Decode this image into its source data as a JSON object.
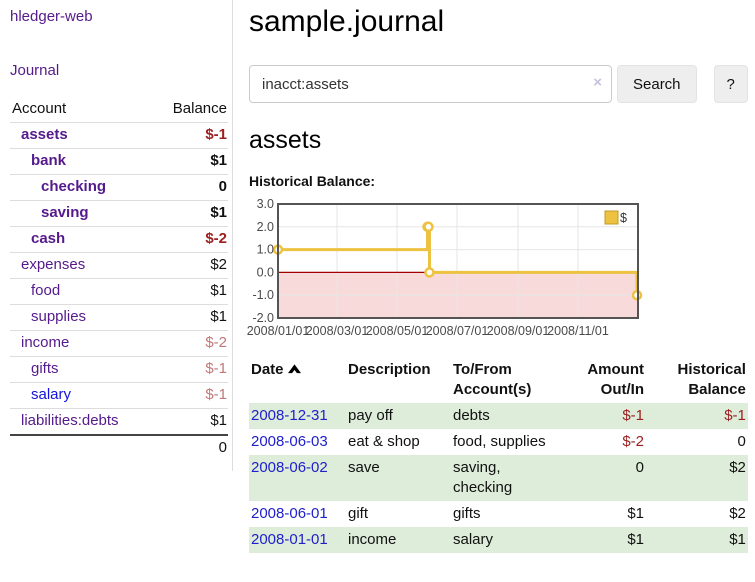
{
  "app": {
    "title": "hledger-web"
  },
  "sidebar": {
    "journal_label": "Journal",
    "accounts_table": {
      "headers": [
        "Account",
        "Balance"
      ],
      "rows": [
        {
          "name": "assets",
          "indent": 0,
          "bold": true,
          "balance": "$-1",
          "neg": "strong"
        },
        {
          "name": "bank",
          "indent": 1,
          "bold": true,
          "balance": "$1",
          "neg": null
        },
        {
          "name": "checking",
          "indent": 2,
          "bold": true,
          "balance": "0",
          "neg": null
        },
        {
          "name": "saving",
          "indent": 2,
          "bold": true,
          "balance": "$1",
          "neg": null
        },
        {
          "name": "cash",
          "indent": 1,
          "bold": true,
          "balance": "$-2",
          "neg": "strong"
        },
        {
          "name": "expenses",
          "indent": 0,
          "bold": false,
          "balance": "$2",
          "neg": null
        },
        {
          "name": "food",
          "indent": 1,
          "bold": false,
          "balance": "$1",
          "neg": null
        },
        {
          "name": "supplies",
          "indent": 1,
          "bold": false,
          "balance": "$1",
          "neg": null
        },
        {
          "name": "income",
          "indent": 0,
          "bold": false,
          "balance": "$-2",
          "neg": "muted"
        },
        {
          "name": "gifts",
          "indent": 1,
          "bold": false,
          "balance": "$-1",
          "neg": "muted"
        },
        {
          "name": "salary",
          "indent": 1,
          "bold": false,
          "balance": "$-1",
          "neg": "muted",
          "unvisited": true
        },
        {
          "name": "liabilities:debts",
          "indent": 0,
          "bold": false,
          "balance": "$1",
          "neg": null
        }
      ],
      "total": "0"
    }
  },
  "header": {
    "title": "sample.journal"
  },
  "search": {
    "value": "inacct:assets",
    "clear_label": "×",
    "button": "Search",
    "help": "?"
  },
  "account_page": {
    "heading": "assets",
    "chart_label": "Historical Balance:"
  },
  "chart_data": {
    "type": "line",
    "title": "Historical Balance",
    "style": "steps",
    "series": [
      {
        "name": "$",
        "color": "#edc240",
        "points": [
          [
            "2008-01-01",
            1
          ],
          [
            "2008-06-01",
            2
          ],
          [
            "2008-06-02",
            2
          ],
          [
            "2008-06-03",
            0
          ],
          [
            "2008-12-31",
            -1
          ]
        ]
      }
    ],
    "x_range": [
      "2008-01-01",
      "2009-01-01"
    ],
    "x_ticks": [
      {
        "date": "2008-01-01",
        "label": "2008/01/01"
      },
      {
        "date": "2008-03-01",
        "label": "2008/03/01"
      },
      {
        "date": "2008-05-01",
        "label": "2008/05/01"
      },
      {
        "date": "2008-07-01",
        "label": "2008/07/01"
      },
      {
        "date": "2008-09-01",
        "label": "2008/09/01"
      },
      {
        "date": "2008-11-01",
        "label": "2008/11/01"
      }
    ],
    "ylim": [
      -2,
      3
    ],
    "y_ticks": [
      3,
      2,
      1,
      0,
      -1,
      -2
    ],
    "y_tick_labels": [
      "3.0",
      "2.0",
      "1.0",
      "0.0",
      "-1.0",
      "-2.0"
    ],
    "legend": {
      "label": "$",
      "position": "top-right"
    },
    "grid": true,
    "markings": {
      "below_zero_fill": "#f9dada",
      "zero_line_color": "#a40000",
      "grid_color": "#e6e6e6",
      "border_color": "#545454",
      "tick_text_color": "#4a4a4a"
    }
  },
  "register": {
    "headers": [
      {
        "lines": [
          "Date"
        ],
        "align": "left",
        "sort": "asc"
      },
      {
        "lines": [
          "Description"
        ],
        "align": "left"
      },
      {
        "lines": [
          "To/From",
          "Account(s)"
        ],
        "align": "left"
      },
      {
        "lines": [
          "Amount",
          "Out/In"
        ],
        "align": "right"
      },
      {
        "lines": [
          "Historical",
          "Balance"
        ],
        "align": "right"
      }
    ],
    "rows": [
      {
        "date": "2008-12-31",
        "description": "pay off",
        "accounts": "debts",
        "amount": "$-1",
        "amount_neg": true,
        "balance": "$-1",
        "balance_neg": true,
        "shaded": true
      },
      {
        "date": "2008-06-03",
        "description": "eat & shop",
        "accounts": "food, supplies",
        "amount": "$-2",
        "amount_neg": true,
        "balance": "0",
        "balance_neg": false,
        "shaded": false
      },
      {
        "date": "2008-06-02",
        "description": "save",
        "accounts": "saving, checking",
        "amount": "0",
        "amount_neg": false,
        "balance": "$2",
        "balance_neg": false,
        "shaded": true
      },
      {
        "date": "2008-06-01",
        "description": "gift",
        "accounts": "gifts",
        "amount": "$1",
        "amount_neg": false,
        "balance": "$2",
        "balance_neg": false,
        "shaded": false
      },
      {
        "date": "2008-01-01",
        "description": "income",
        "accounts": "salary",
        "amount": "$1",
        "amount_neg": false,
        "balance": "$1",
        "balance_neg": false,
        "shaded": true
      }
    ]
  },
  "colors": {
    "link_purple": "#551a8b",
    "link_blue": "#1414dd",
    "date_link_blue": "#2020cc",
    "negative_strong": "#9a1f1f",
    "negative_muted": "#c17878",
    "row_shade_green": "#deecda",
    "chart_line_gold": "#edc240",
    "chart_area_pink": "#f9dada",
    "chart_zero_red": "#a40000",
    "button_gray": "#eeeeee"
  }
}
